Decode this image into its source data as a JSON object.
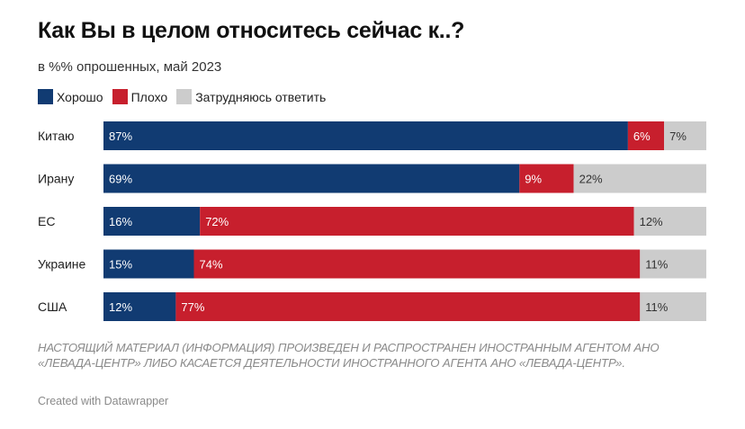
{
  "header": {
    "title": "Как Вы в целом относитесь сейчас к..?",
    "subtitle": "в %% опрошенных, май 2023"
  },
  "legend": [
    {
      "label": "Хорошо",
      "color": "#113b72"
    },
    {
      "label": "Плохо",
      "color": "#c71f2d"
    },
    {
      "label": "Затрудняюсь ответить",
      "color": "#cccccc"
    }
  ],
  "chart_data": {
    "type": "bar",
    "orientation": "horizontal",
    "stacked": true,
    "categories": [
      "Китаю",
      "Ирану",
      "ЕС",
      "Украине",
      "США"
    ],
    "series": [
      {
        "name": "Хорошо",
        "color": "#113b72",
        "values": [
          87,
          69,
          16,
          15,
          12
        ],
        "labels": [
          "87%",
          "69%",
          "16%",
          "15%",
          "12%"
        ]
      },
      {
        "name": "Плохо",
        "color": "#c71f2d",
        "values": [
          6,
          9,
          72,
          74,
          77
        ],
        "labels": [
          "6%",
          "9%",
          "72%",
          "74%",
          "77%"
        ]
      },
      {
        "name": "Затрудняюсь ответить",
        "color": "#cccccc",
        "values": [
          7,
          22,
          12,
          11,
          11
        ],
        "labels": [
          "7%",
          "22%",
          "12%",
          "11%",
          "11%"
        ]
      }
    ],
    "xlim": [
      0,
      100
    ],
    "grid": false,
    "legend_position": "top-left"
  },
  "footer": {
    "disclaimer": "НАСТОЯЩИЙ МАТЕРИАЛ (ИНФОРМАЦИЯ) ПРОИЗВЕДЕН И РАСПРОСТРАНЕН ИНОСТРАННЫМ АГЕНТОМ АНО «ЛЕВАДА-ЦЕНТР» ЛИБО КАСАЕТСЯ ДЕЯТЕЛЬНОСТИ ИНОСТРАННОГО АГЕНТА АНО «ЛЕВАДА-ЦЕНТР».",
    "credit": "Created with Datawrapper"
  }
}
